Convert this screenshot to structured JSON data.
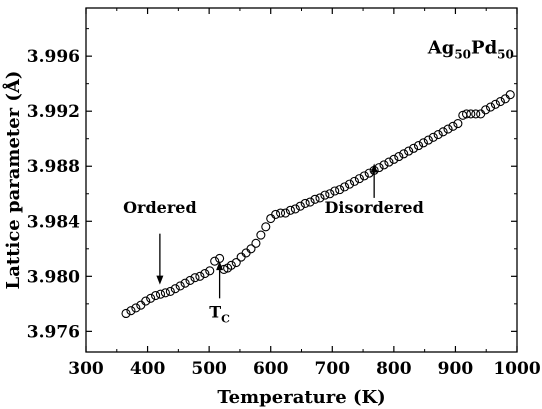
{
  "chart_data": {
    "type": "scatter",
    "title": "",
    "xlabel": "Temperature (K)",
    "ylabel": "Lattice parameter (Å)",
    "xlim": [
      300,
      1000
    ],
    "ylim": [
      3.9745,
      3.9995
    ],
    "x_ticks": [
      "300",
      "400",
      "500",
      "600",
      "700",
      "800",
      "900",
      "1000"
    ],
    "y_ticks": [
      "3.976",
      "3.980",
      "3.984",
      "3.988",
      "3.992",
      "3.996"
    ],
    "grid": false,
    "legend": "none",
    "series": [
      {
        "marker": "open-circle",
        "points": [
          [
            365,
            3.9773
          ],
          [
            373,
            3.9775
          ],
          [
            381,
            3.9777
          ],
          [
            389,
            3.9779
          ],
          [
            397,
            3.9782
          ],
          [
            405,
            3.9784
          ],
          [
            413,
            3.9786
          ],
          [
            421,
            3.9787
          ],
          [
            429,
            3.9788
          ],
          [
            437,
            3.9789
          ],
          [
            445,
            3.9791
          ],
          [
            453,
            3.9793
          ],
          [
            461,
            3.9795
          ],
          [
            469,
            3.9797
          ],
          [
            477,
            3.9799
          ],
          [
            485,
            3.98
          ],
          [
            493,
            3.9802
          ],
          [
            501,
            3.9804
          ],
          [
            509,
            3.9811
          ],
          [
            517,
            3.9813
          ],
          [
            524,
            3.9805
          ],
          [
            530,
            3.9806
          ],
          [
            536,
            3.9808
          ],
          [
            544,
            3.981
          ],
          [
            552,
            3.9814
          ],
          [
            560,
            3.9817
          ],
          [
            568,
            3.982
          ],
          [
            576,
            3.9824
          ],
          [
            584,
            3.983
          ],
          [
            592,
            3.9836
          ],
          [
            600,
            3.9842
          ],
          [
            608,
            3.9845
          ],
          [
            616,
            3.9846
          ],
          [
            624,
            3.9846
          ],
          [
            632,
            3.9848
          ],
          [
            640,
            3.9849
          ],
          [
            648,
            3.9851
          ],
          [
            656,
            3.9853
          ],
          [
            664,
            3.9854
          ],
          [
            672,
            3.9856
          ],
          [
            680,
            3.9857
          ],
          [
            688,
            3.9859
          ],
          [
            696,
            3.986
          ],
          [
            704,
            3.9862
          ],
          [
            712,
            3.9863
          ],
          [
            720,
            3.9865
          ],
          [
            728,
            3.9867
          ],
          [
            736,
            3.9869
          ],
          [
            744,
            3.9871
          ],
          [
            752,
            3.9873
          ],
          [
            760,
            3.9875
          ],
          [
            768,
            3.9877
          ],
          [
            776,
            3.9879
          ],
          [
            784,
            3.9881
          ],
          [
            792,
            3.9883
          ],
          [
            800,
            3.9885
          ],
          [
            808,
            3.9887
          ],
          [
            816,
            3.9889
          ],
          [
            824,
            3.9891
          ],
          [
            832,
            3.9893
          ],
          [
            840,
            3.9895
          ],
          [
            848,
            3.9897
          ],
          [
            856,
            3.9899
          ],
          [
            864,
            3.9901
          ],
          [
            872,
            3.9903
          ],
          [
            880,
            3.9905
          ],
          [
            888,
            3.9907
          ],
          [
            896,
            3.9909
          ],
          [
            904,
            3.9911
          ],
          [
            912,
            3.9917
          ],
          [
            918,
            3.9918
          ],
          [
            925,
            3.9918
          ],
          [
            933,
            3.9918
          ],
          [
            941,
            3.9918
          ],
          [
            949,
            3.9921
          ],
          [
            957,
            3.9923
          ],
          [
            965,
            3.9925
          ],
          [
            973,
            3.9927
          ],
          [
            981,
            3.9929
          ],
          [
            989,
            3.9932
          ]
        ]
      }
    ],
    "annotations": [
      {
        "id": "compound",
        "base": "Ag",
        "sub1": "50",
        "mid": "Pd",
        "sub2": "50",
        "x": 925,
        "y": 3.9962
      },
      {
        "id": "ordered",
        "text": "Ordered",
        "x": 420,
        "y": 3.9846,
        "arrow_from": [
          420,
          3.9831
        ],
        "arrow_to": [
          420,
          3.9794
        ]
      },
      {
        "id": "tc",
        "text": "T",
        "sub": "C",
        "x": 517,
        "y": 3.977,
        "arrow_from": [
          517,
          3.9784
        ],
        "arrow_to": [
          517,
          3.9811
        ]
      },
      {
        "id": "disordered",
        "text": "Disordered",
        "x": 768,
        "y": 3.9846,
        "arrow_from": [
          768,
          3.9857
        ],
        "arrow_to": [
          768,
          3.9882
        ]
      }
    ]
  }
}
